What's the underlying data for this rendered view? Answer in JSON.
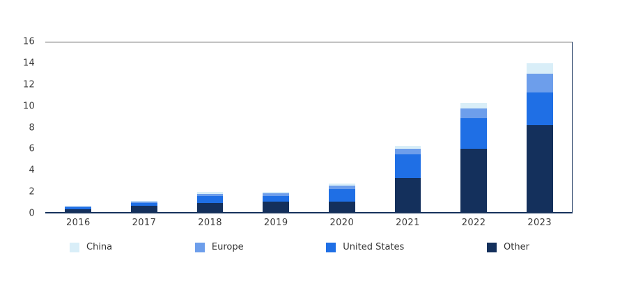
{
  "chart_data": {
    "type": "bar",
    "stacked": true,
    "title": "",
    "xlabel": "",
    "ylabel": "",
    "categories": [
      "2016",
      "2017",
      "2018",
      "2019",
      "2020",
      "2021",
      "2022",
      "2023"
    ],
    "series": [
      {
        "name": "Other",
        "color": "#14305c",
        "values": [
          0.4,
          0.7,
          1.0,
          1.1,
          1.1,
          3.3,
          6.0,
          8.2
        ]
      },
      {
        "name": "United States",
        "color": "#1f6fe5",
        "values": [
          0.2,
          0.3,
          0.6,
          0.5,
          1.2,
          2.2,
          2.9,
          3.1
        ]
      },
      {
        "name": "Europe",
        "color": "#6d9eeb",
        "values": [
          0.05,
          0.1,
          0.2,
          0.25,
          0.3,
          0.5,
          0.9,
          1.7
        ]
      },
      {
        "name": "China",
        "color": "#d9eef8",
        "values": [
          0.05,
          0.1,
          0.2,
          0.15,
          0.2,
          0.3,
          0.5,
          1.0
        ]
      }
    ],
    "legend_order": [
      "China",
      "Europe",
      "United States",
      "Other"
    ],
    "legend_position": "bottom",
    "ylim": [
      0,
      16
    ],
    "yticks": [
      0,
      2,
      4,
      6,
      8,
      10,
      12,
      14,
      16
    ],
    "grid": false,
    "colors": {
      "axis_line": "#16325c",
      "top_border": "#595959",
      "tick_text": "#3a3a3a"
    }
  }
}
